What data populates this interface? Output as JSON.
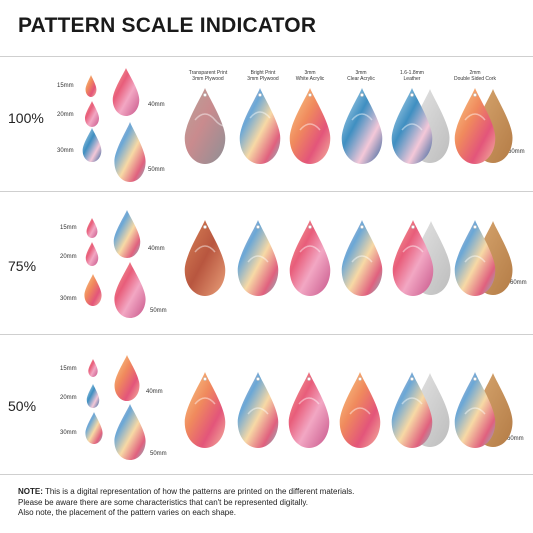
{
  "title": "PATTERN SCALE INDICATOR",
  "rows": [
    {
      "scale": "100%",
      "sizes": [
        "15mm",
        "20mm",
        "30mm",
        "40mm",
        "50mm"
      ],
      "size_ref": "60mm"
    },
    {
      "scale": "75%",
      "sizes": [
        "15mm",
        "20mm",
        "30mm",
        "40mm",
        "50mm"
      ],
      "size_ref": "60mm"
    },
    {
      "scale": "50%",
      "sizes": [
        "15mm",
        "20mm",
        "30mm",
        "40mm",
        "50mm"
      ],
      "size_ref": "60mm"
    }
  ],
  "materials": [
    {
      "line1": "Transparent Print",
      "line2": "3mm Plywood"
    },
    {
      "line1": "Bright Print",
      "line2": "3mm Plywood"
    },
    {
      "line1": "3mm",
      "line2": "White Acrylic"
    },
    {
      "line1": "3mm",
      "line2": "Clear Acrylic"
    },
    {
      "line1": "1.6-1.8mm",
      "line2": "Leather"
    },
    {
      "line1": "2mm",
      "line2": "Double Sided Cork"
    }
  ],
  "note": {
    "label": "NOTE:",
    "line1": "This is a digital representation of how the patterns are printed on the different materials.",
    "line2": "Please be aware there are some characteristics that can't be represented digitally.",
    "line3": "Also note, the placement of the pattern varies on each shape."
  }
}
